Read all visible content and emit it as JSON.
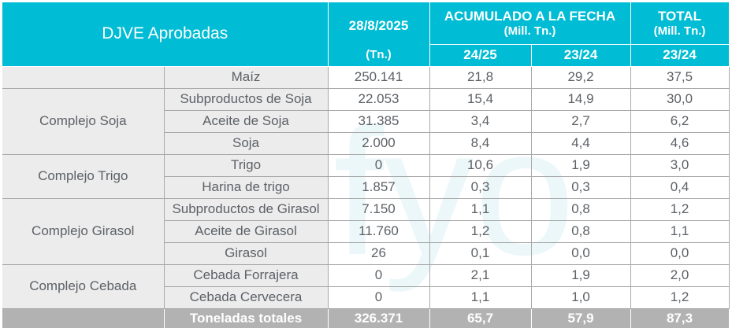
{
  "header": {
    "title": "DJVE Aprobadas",
    "date": "28/8/2025",
    "date_unit": "(Tn.)",
    "acumulado_line1": "ACUMULADO A LA FECHA",
    "acumulado_line2": "(Mill. Tn.)",
    "total_line1": "TOTAL",
    "total_line2": "(Mill. Tn.)",
    "col_2425": "24/25",
    "col_2324": "23/24",
    "col_total_2324": "23/24"
  },
  "rows": [
    {
      "product": "Maíz",
      "tn": "250.141",
      "a2425": "21,8",
      "a2324": "29,2",
      "total": "37,5"
    },
    {
      "product": "Subproductos de Soja",
      "tn": "22.053",
      "a2425": "15,4",
      "a2324": "14,9",
      "total": "30,0"
    },
    {
      "product": "Aceite de Soja",
      "tn": "31.385",
      "a2425": "3,4",
      "a2324": "2,7",
      "total": "6,2"
    },
    {
      "product": "Soja",
      "tn": "2.000",
      "a2425": "8,4",
      "a2324": "4,4",
      "total": "4,6"
    },
    {
      "product": "Trigo",
      "tn": "0",
      "a2425": "10,6",
      "a2324": "1,9",
      "total": "3,0"
    },
    {
      "product": "Harina de trigo",
      "tn": "1.857",
      "a2425": "0,3",
      "a2324": "0,3",
      "total": "0,4"
    },
    {
      "product": "Subproductos de Girasol",
      "tn": "7.150",
      "a2425": "1,1",
      "a2324": "0,8",
      "total": "1,2"
    },
    {
      "product": "Aceite de Girasol",
      "tn": "11.760",
      "a2425": "1,2",
      "a2324": "0,8",
      "total": "1,1"
    },
    {
      "product": "Girasol",
      "tn": "26",
      "a2425": "0,1",
      "a2324": "0,0",
      "total": "0,0"
    },
    {
      "product": "Cebada Forrajera",
      "tn": "0",
      "a2425": "2,1",
      "a2324": "1,9",
      "total": "2,0"
    },
    {
      "product": "Cebada Cervecera",
      "tn": "0",
      "a2425": "1,1",
      "a2324": "1,0",
      "total": "1,2"
    }
  ],
  "groups": {
    "soja": "Complejo Soja",
    "trigo": "Complejo Trigo",
    "girasol": "Complejo Girasol",
    "cebada": "Complejo Cebada"
  },
  "totals": {
    "label": "Toneladas totales",
    "tn": "326.371",
    "a2425": "65,7",
    "a2324": "57,9",
    "total": "87,3"
  },
  "watermark": {
    "text": "fyo",
    "color": "#4cb8d6"
  },
  "colors": {
    "header_bg": "#00bcd4",
    "category_bg": "#ececec",
    "total_bg": "#b2b2b2",
    "body_text": "#5d6166"
  }
}
